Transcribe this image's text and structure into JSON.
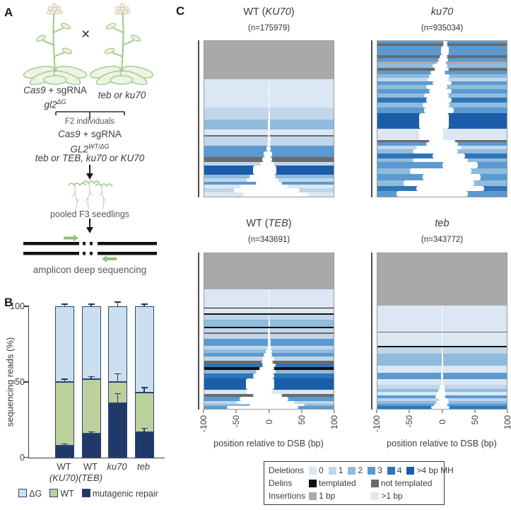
{
  "colors": {
    "del0": "#dbe7f2",
    "del1": "#c1d6ea",
    "del2": "#8fbbdd",
    "del3": "#5a9ad0",
    "del4": "#2e75b6",
    "mh": "#1a5dab",
    "templated": "#111111",
    "notTemplated": "#6b6b6b",
    "ins1": "#a9a9a9",
    "insGt1": "#e7e7e7",
    "barBlue": "#cbdff0",
    "barGreen": "#bcd09c",
    "barNavy": "#1f3a68",
    "plantStroke": "#a6cb8e",
    "plantFill": "#edf4e4",
    "flowerFill": "#f5efe2",
    "flowerStroke": "#cfc6ae",
    "arrowGreen": "#90c277",
    "rootPale": "#d6cfbc",
    "black": "#1a1a1a"
  },
  "panel_labels": {
    "a": "A",
    "b": "B",
    "c": "C"
  },
  "panel_a": {
    "cross": "×",
    "parent_left_line1_it": "Cas9",
    "parent_left_line1_rest": " + sgRNA",
    "parent_left_line2_base": "gl2",
    "parent_left_line2_sup": "ΔG",
    "parent_right": "teb or ku70",
    "f2_label": "F2 individuals",
    "f2_line1_it": "Cas9",
    "f2_line1_rest": " + sgRNA",
    "f2_line2_base": "GL2",
    "f2_line2_sup": "WT/ΔG",
    "f2_line3": "teb or TEB, ku70 or KU70",
    "pooled_label": "pooled F3 seedlings",
    "amplicon_label": "amplicon deep sequencing"
  },
  "panel_b": {
    "ylabel": "sequencing reads (%)",
    "yticks": [
      "100",
      "50",
      "0"
    ],
    "legend": [
      {
        "key": "barBlue",
        "label": "ΔG"
      },
      {
        "key": "barGreen",
        "label": "WT"
      },
      {
        "key": "barNavy",
        "label": "mutagenic repair"
      }
    ]
  },
  "chart_data": [
    {
      "type": "bar",
      "stacked": true,
      "title": "",
      "xlabel": "",
      "ylabel": "sequencing reads (%)",
      "ylim": [
        0,
        100
      ],
      "yticks": [
        0,
        50,
        100
      ],
      "legend_position": "bottom",
      "categories": [
        "WT (KU70)",
        "WT (TEB)",
        "ku70",
        "teb"
      ],
      "category_labels": [
        [
          {
            "t": "WT",
            "it": false
          },
          {
            "t": "(KU70)",
            "it": true
          }
        ],
        [
          {
            "t": "WT",
            "it": false
          },
          {
            "t": "(TEB)",
            "it": true
          }
        ],
        [
          {
            "t": "ku70",
            "it": true
          }
        ],
        [
          {
            "t": "teb",
            "it": true
          }
        ]
      ],
      "series": [
        {
          "name": "mutagenic repair",
          "color_key": "barNavy",
          "values": [
            8,
            16,
            36,
            17
          ]
        },
        {
          "name": "WT",
          "color_key": "barGreen",
          "values": [
            42,
            36,
            14,
            26
          ]
        },
        {
          "name": "ΔG",
          "color_key": "barBlue",
          "values": [
            50,
            48,
            50,
            57
          ]
        }
      ],
      "error_bars": [
        [
          [
            8,
            0.8
          ],
          [
            50,
            1.5
          ],
          [
            100,
            1
          ]
        ],
        [
          [
            16,
            0.8
          ],
          [
            52,
            1.2
          ],
          [
            100,
            1
          ]
        ],
        [
          [
            36,
            6
          ],
          [
            50,
            5
          ],
          [
            100,
            2.5
          ]
        ],
        [
          [
            17,
            2
          ],
          [
            43,
            3
          ],
          [
            100,
            1
          ]
        ]
      ]
    },
    {
      "type": "heatmap",
      "subtype": "read-alignment deletion profile",
      "xlabel": "position relative to DSB (bp)",
      "xlim": [
        -100,
        100
      ],
      "xticks": [
        "-100",
        "-50",
        "0",
        "50",
        "100"
      ],
      "row_format": [
        "color_key",
        "height_weight",
        "gap_start_bp",
        "gap_end_bp"
      ],
      "panels": [
        {
          "title": {
            "pre": "WT (",
            "it": "KU70",
            "post": ")"
          },
          "n": "(n=175979)",
          "rows": [
            [
              "ins1",
              54,
              null,
              null
            ],
            [
              "del0",
              10,
              -1,
              1
            ],
            [
              "del0",
              9,
              -1,
              1
            ],
            [
              "del0",
              8,
              -1,
              1
            ],
            [
              "del0",
              7,
              -1,
              1
            ],
            [
              "del0",
              6,
              -1,
              1
            ],
            [
              "del1",
              5,
              -1,
              1
            ],
            [
              "del1",
              12,
              -1,
              2
            ],
            [
              "del2",
              15,
              -2,
              2
            ],
            [
              "del0",
              8,
              -2,
              2
            ],
            [
              "notTemplated",
              2,
              -2,
              2
            ],
            [
              "del1",
              8,
              -2,
              3
            ],
            [
              "del1",
              5,
              -3,
              3
            ],
            [
              "del3",
              8,
              -4,
              3
            ],
            [
              "del3",
              8,
              -8,
              5
            ],
            [
              "notTemplated",
              7,
              -10,
              5
            ],
            [
              "del1",
              5,
              -14,
              8
            ],
            [
              "mh",
              13,
              -25,
              12
            ],
            [
              "del2",
              5,
              -30,
              10
            ],
            [
              "del1",
              5,
              -34,
              15
            ],
            [
              "del3",
              4,
              -20,
              20
            ],
            [
              "del0",
              5,
              -44,
              30
            ],
            [
              "del1",
              6,
              -54,
              48
            ],
            [
              "del0",
              6,
              -40,
              62
            ]
          ]
        },
        {
          "title": {
            "pre": "",
            "it": "ku70",
            "post": ""
          },
          "n": "(n=935034)",
          "rows": [
            [
              "del3",
              3,
              2,
              8
            ],
            [
              "notTemplated",
              4,
              2,
              8
            ],
            [
              "del3",
              12,
              -2,
              10
            ],
            [
              "notTemplated",
              4,
              -4,
              8
            ],
            [
              "del3",
              4,
              -6,
              9
            ],
            [
              "ins1",
              3,
              -8,
              6
            ],
            [
              "del2",
              6,
              -15,
              8
            ],
            [
              "notTemplated",
              4,
              -12,
              10
            ],
            [
              "del3",
              4,
              -18,
              5
            ],
            [
              "del2",
              5,
              -20,
              12
            ],
            [
              "del1",
              5,
              -22,
              10
            ],
            [
              "del3",
              5,
              -15,
              15
            ],
            [
              "del2",
              5,
              -25,
              8
            ],
            [
              "del3",
              6,
              -20,
              15
            ],
            [
              "del2",
              6,
              -28,
              10
            ],
            [
              "del4",
              6,
              -25,
              15
            ],
            [
              "del2",
              7,
              -30,
              12
            ],
            [
              "del3",
              7,
              -28,
              18
            ],
            [
              "mh",
              21,
              -35,
              10
            ],
            [
              "del0",
              15,
              -35,
              2
            ],
            [
              "notTemplated",
              3,
              -20,
              20
            ],
            [
              "del3",
              5,
              -25,
              25
            ],
            [
              "del1",
              5,
              -40,
              30
            ],
            [
              "del2",
              5,
              -45,
              25
            ],
            [
              "del4",
              7,
              -15,
              35
            ],
            [
              "del2",
              5,
              -45,
              40
            ],
            [
              "del3",
              8,
              0,
              55
            ],
            [
              "del2",
              8,
              -50,
              45
            ],
            [
              "del3",
              8,
              -30,
              60
            ],
            [
              "del2",
              8,
              -60,
              50
            ],
            [
              "del4",
              6,
              -40,
              65
            ],
            [
              "del3",
              8,
              -70,
              40
            ]
          ]
        },
        {
          "title": {
            "pre": "WT (",
            "it": "TEB",
            "post": ")"
          },
          "n": "(n=343691)",
          "rows": [
            [
              "ins1",
              50,
              null,
              null
            ],
            [
              "del0",
              10,
              -1,
              1
            ],
            [
              "del0",
              8,
              -1,
              1
            ],
            [
              "del0",
              7,
              -1,
              1
            ],
            [
              "templated",
              1.5,
              null,
              null
            ],
            [
              "del0",
              7,
              -1,
              1
            ],
            [
              "templated",
              1.5,
              null,
              null
            ],
            [
              "del1",
              7,
              -1,
              1
            ],
            [
              "del2",
              10,
              -1,
              2
            ],
            [
              "templated",
              1.5,
              null,
              null
            ],
            [
              "del1",
              6,
              -2,
              2
            ],
            [
              "notTemplated",
              2,
              -2,
              2
            ],
            [
              "del1",
              7,
              -2,
              2
            ],
            [
              "del3",
              10,
              -2,
              3
            ],
            [
              "del1",
              5,
              -3,
              4
            ],
            [
              "del2",
              5,
              -5,
              5
            ],
            [
              "del3",
              5,
              -8,
              5
            ],
            [
              "del1",
              5,
              -10,
              8
            ],
            [
              "notTemplated",
              4,
              -12,
              6
            ],
            [
              "del4",
              5,
              -10,
              10
            ],
            [
              "templated",
              4,
              -15,
              8
            ],
            [
              "del2",
              5,
              -20,
              10
            ],
            [
              "del4",
              7,
              -25,
              8
            ],
            [
              "mh",
              16,
              -35,
              8
            ],
            [
              "del0",
              5,
              -35,
              5
            ],
            [
              "notTemplated",
              4,
              -25,
              20
            ],
            [
              "del3",
              6,
              -45,
              30
            ],
            [
              "del1",
              4,
              -50,
              40
            ],
            [
              "del2",
              3,
              -30,
              55
            ],
            [
              "del3",
              4,
              -65,
              45
            ]
          ]
        },
        {
          "title": {
            "pre": "",
            "it": "teb",
            "post": ""
          },
          "n": "(n=343772)",
          "rows": [
            [
              "ins1",
              63,
              null,
              null
            ],
            [
              "del0",
              12,
              -1,
              1
            ],
            [
              "del0",
              10,
              -1,
              1
            ],
            [
              "del0",
              9,
              -1,
              1
            ],
            [
              "notTemplated",
              1.5,
              null,
              null
            ],
            [
              "del0",
              16,
              -1,
              1
            ],
            [
              "templated",
              1.5,
              null,
              null
            ],
            [
              "del1",
              8,
              -1,
              1
            ],
            [
              "del2",
              14,
              -1,
              2
            ],
            [
              "del0",
              9,
              -1,
              1
            ],
            [
              "del3",
              7,
              -2,
              2
            ],
            [
              "del0",
              7,
              -1,
              2
            ],
            [
              "del1",
              5,
              -4,
              4
            ],
            [
              "del2",
              4,
              -6,
              5
            ],
            [
              "del0",
              4,
              -8,
              6
            ],
            [
              "del3",
              3,
              -10,
              5
            ],
            [
              "del1",
              4,
              -5,
              9
            ],
            [
              "del2",
              3,
              -9,
              10
            ],
            [
              "del3",
              3,
              -13,
              8
            ],
            [
              "del4",
              3,
              -17,
              12
            ]
          ]
        }
      ]
    }
  ],
  "legend_box": {
    "rows": [
      {
        "cls": "deletions",
        "label": "Deletions",
        "items": [
          {
            "key": "del0",
            "text": "0"
          },
          {
            "key": "del1",
            "text": "1"
          },
          {
            "key": "del2",
            "text": "2"
          },
          {
            "key": "del3",
            "text": "3"
          },
          {
            "key": "del4",
            "text": "4"
          },
          {
            "key": "mh",
            "text": ">4 bp MH"
          }
        ]
      },
      {
        "cls": "delins",
        "label": "Delins",
        "items": [
          {
            "key": "templated",
            "text": "templated"
          },
          {
            "key": "notTemplated",
            "text": "not templated"
          }
        ]
      },
      {
        "cls": "insertions",
        "label": "Insertions",
        "items": [
          {
            "key": "ins1",
            "text": "1 bp"
          },
          {
            "key": "insGt1",
            "text": ">1 bp"
          }
        ]
      }
    ]
  }
}
